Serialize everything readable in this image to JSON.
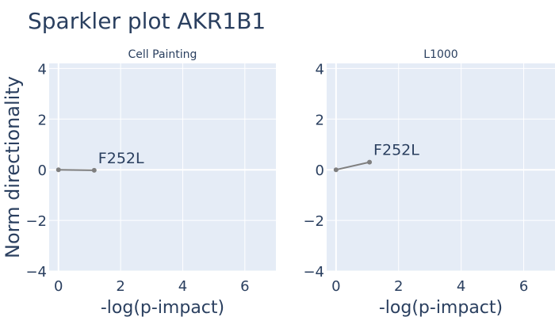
{
  "title": "Sparkler plot AKR1B1",
  "ylabel": "Norm directionality",
  "colors": {
    "plot_bg": "#e5ecf6",
    "grid": "#ffffff",
    "line": "#7f7f7f",
    "text": "#2a3f5f"
  },
  "chart_data": [
    {
      "type": "line",
      "title": "Cell Painting",
      "xlabel": "-log(p-impact)",
      "ylabel": "Norm directionality",
      "xlim": [
        -0.3,
        7.0
      ],
      "ylim": [
        -4,
        4.2
      ],
      "xticks": [
        0,
        2,
        4,
        6
      ],
      "yticks": [
        -4,
        -2,
        0,
        2,
        4
      ],
      "grid": true,
      "series": [
        {
          "x": [
            0,
            1.15
          ],
          "y": [
            0,
            -0.02
          ],
          "label": "F252L"
        }
      ]
    },
    {
      "type": "line",
      "title": "L1000",
      "xlabel": "-log(p-impact)",
      "ylabel": "",
      "xlim": [
        -0.3,
        7.0
      ],
      "ylim": [
        -4,
        4.2
      ],
      "xticks": [
        0,
        2,
        4,
        6
      ],
      "yticks": [
        -4,
        -2,
        0,
        2,
        4
      ],
      "grid": true,
      "series": [
        {
          "x": [
            0,
            1.07
          ],
          "y": [
            0,
            0.3
          ],
          "label": "F252L"
        }
      ]
    }
  ]
}
